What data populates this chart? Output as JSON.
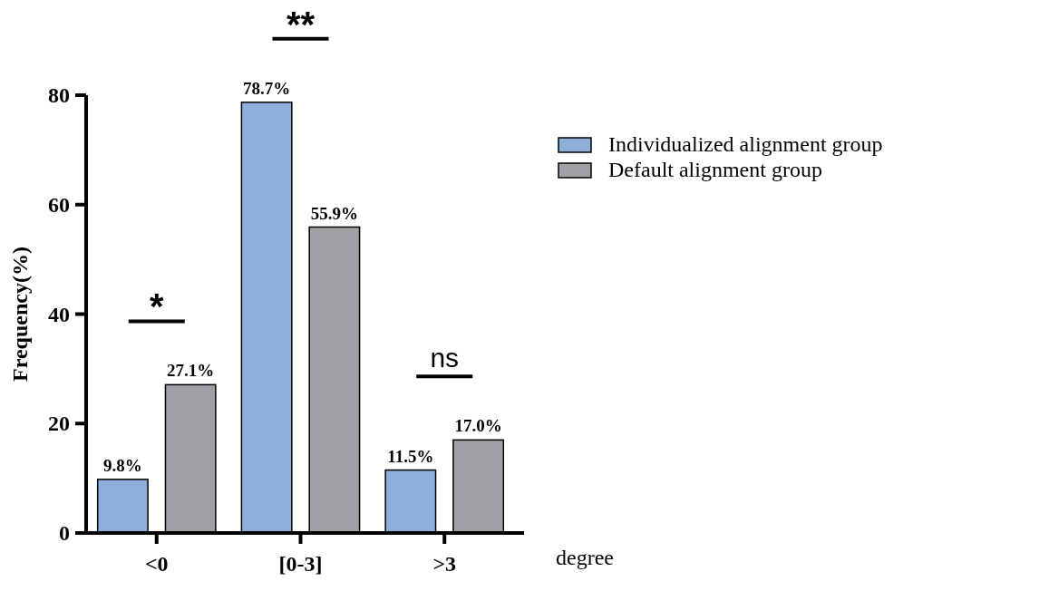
{
  "chart_data": {
    "type": "bar",
    "xlabel": "degree",
    "ylabel": "Frequency(%)",
    "categories": [
      "<0",
      "[0-3]",
      ">3"
    ],
    "series": [
      {
        "name": "Individualized alignment group",
        "color": "#8eaedb",
        "values": [
          9.8,
          78.7,
          11.5
        ],
        "value_labels": [
          "9.8%",
          "78.7%",
          "11.5%"
        ]
      },
      {
        "name": "Default alignment group",
        "color": "#a0a0a5",
        "values": [
          27.1,
          55.9,
          17.0
        ],
        "value_labels": [
          "27.1%",
          "55.9%",
          "17.0%"
        ]
      }
    ],
    "ylim": [
      0,
      80
    ],
    "yticks": [
      0,
      20,
      40,
      60,
      80
    ],
    "grid": false,
    "legend": "right",
    "annotations": [
      "*",
      "**",
      "ns"
    ]
  }
}
